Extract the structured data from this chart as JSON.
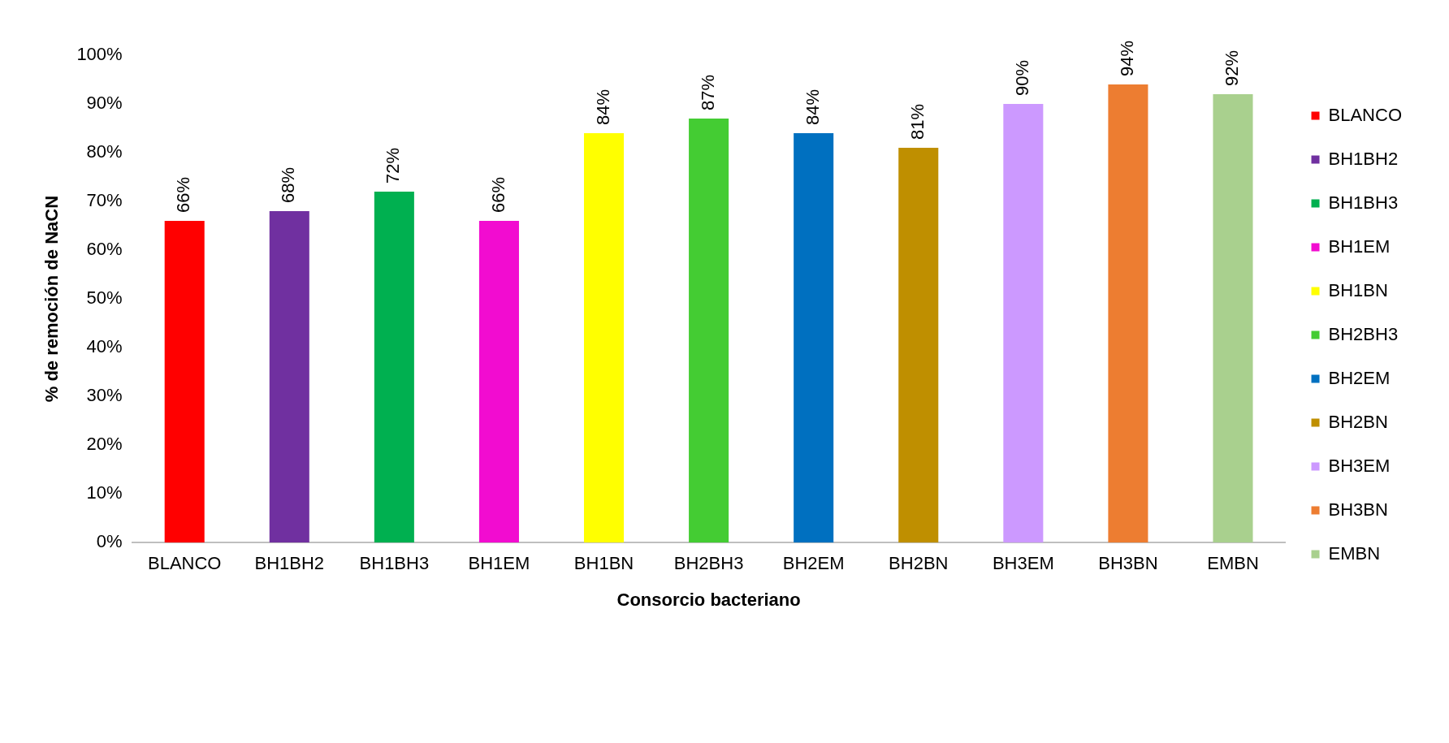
{
  "chart_data": {
    "type": "bar",
    "xlabel": "Consorcio bacteriano",
    "ylabel": "% de remoción de NaCN",
    "categories": [
      "BLANCO",
      "BH1BH2",
      "BH1BH3",
      "BH1EM",
      "BH1BN",
      "BH2BH3",
      "BH2EM",
      "BH2BN",
      "BH3EM",
      "BH3BN",
      "EMBN"
    ],
    "series": [
      {
        "name": "BLANCO",
        "color": "#ff0000",
        "values": [
          66,
          null,
          null,
          null,
          null,
          null,
          null,
          null,
          null,
          null,
          null
        ],
        "value_labels": [
          "66%",
          null,
          null,
          null,
          null,
          null,
          null,
          null,
          null,
          null,
          null
        ]
      },
      {
        "name": "BH1BH2",
        "color": "#7030a0",
        "values": [
          null,
          68,
          null,
          null,
          null,
          null,
          null,
          null,
          null,
          null,
          null
        ],
        "value_labels": [
          null,
          "68%",
          null,
          null,
          null,
          null,
          null,
          null,
          null,
          null,
          null
        ]
      },
      {
        "name": "BH1BH3",
        "color": "#00b050",
        "values": [
          null,
          null,
          72,
          null,
          null,
          null,
          null,
          null,
          null,
          null,
          null
        ],
        "value_labels": [
          null,
          null,
          "72%",
          null,
          null,
          null,
          null,
          null,
          null,
          null,
          null
        ]
      },
      {
        "name": "BH1EM",
        "color": "#f20cd0",
        "values": [
          null,
          null,
          null,
          66,
          null,
          null,
          null,
          null,
          null,
          null,
          null
        ],
        "value_labels": [
          null,
          null,
          null,
          "66%",
          null,
          null,
          null,
          null,
          null,
          null,
          null
        ]
      },
      {
        "name": "BH1BN",
        "color": "#ffff00",
        "values": [
          null,
          null,
          null,
          null,
          84,
          null,
          null,
          null,
          null,
          null,
          null
        ],
        "value_labels": [
          null,
          null,
          null,
          null,
          "84%",
          null,
          null,
          null,
          null,
          null,
          null
        ]
      },
      {
        "name": "BH2BH3",
        "color": "#44cc33",
        "values": [
          null,
          null,
          null,
          null,
          null,
          87,
          null,
          null,
          null,
          null,
          null
        ],
        "value_labels": [
          null,
          null,
          null,
          null,
          null,
          "87%",
          null,
          null,
          null,
          null,
          null
        ]
      },
      {
        "name": "BH2EM",
        "color": "#0070c0",
        "values": [
          null,
          null,
          null,
          null,
          null,
          null,
          84,
          null,
          null,
          null,
          null
        ],
        "value_labels": [
          null,
          null,
          null,
          null,
          null,
          null,
          "84%",
          null,
          null,
          null,
          null
        ]
      },
      {
        "name": "BH2BN",
        "color": "#bf8f00",
        "values": [
          null,
          null,
          null,
          null,
          null,
          null,
          null,
          81,
          null,
          null,
          null
        ],
        "value_labels": [
          null,
          null,
          null,
          null,
          null,
          null,
          null,
          "81%",
          null,
          null,
          null
        ]
      },
      {
        "name": "BH3EM",
        "color": "#cc99ff",
        "values": [
          null,
          null,
          null,
          null,
          null,
          null,
          null,
          null,
          90,
          null,
          null
        ],
        "value_labels": [
          null,
          null,
          null,
          null,
          null,
          null,
          null,
          null,
          "90%",
          null,
          null
        ]
      },
      {
        "name": "BH3BN",
        "color": "#ed7d31",
        "values": [
          null,
          null,
          null,
          null,
          null,
          null,
          null,
          null,
          null,
          94,
          null
        ],
        "value_labels": [
          null,
          null,
          null,
          null,
          null,
          null,
          null,
          null,
          null,
          "94%",
          null
        ]
      },
      {
        "name": "EMBN",
        "color": "#a9d08e",
        "values": [
          null,
          null,
          null,
          null,
          null,
          null,
          null,
          null,
          null,
          null,
          92
        ],
        "value_labels": [
          null,
          null,
          null,
          null,
          null,
          null,
          null,
          null,
          null,
          null,
          "92%"
        ]
      }
    ],
    "ylim": [
      0,
      100
    ],
    "yticks": [
      {
        "value": 0,
        "label": "0%"
      },
      {
        "value": 10,
        "label": "10%"
      },
      {
        "value": 20,
        "label": "20%"
      },
      {
        "value": 30,
        "label": "30%"
      },
      {
        "value": 40,
        "label": "40%"
      },
      {
        "value": 50,
        "label": "50%"
      },
      {
        "value": 60,
        "label": "60%"
      },
      {
        "value": 70,
        "label": "70%"
      },
      {
        "value": 80,
        "label": "80%"
      },
      {
        "value": 90,
        "label": "90%"
      },
      {
        "value": 100,
        "label": "100%"
      }
    ],
    "grid": false,
    "legend": "right"
  }
}
